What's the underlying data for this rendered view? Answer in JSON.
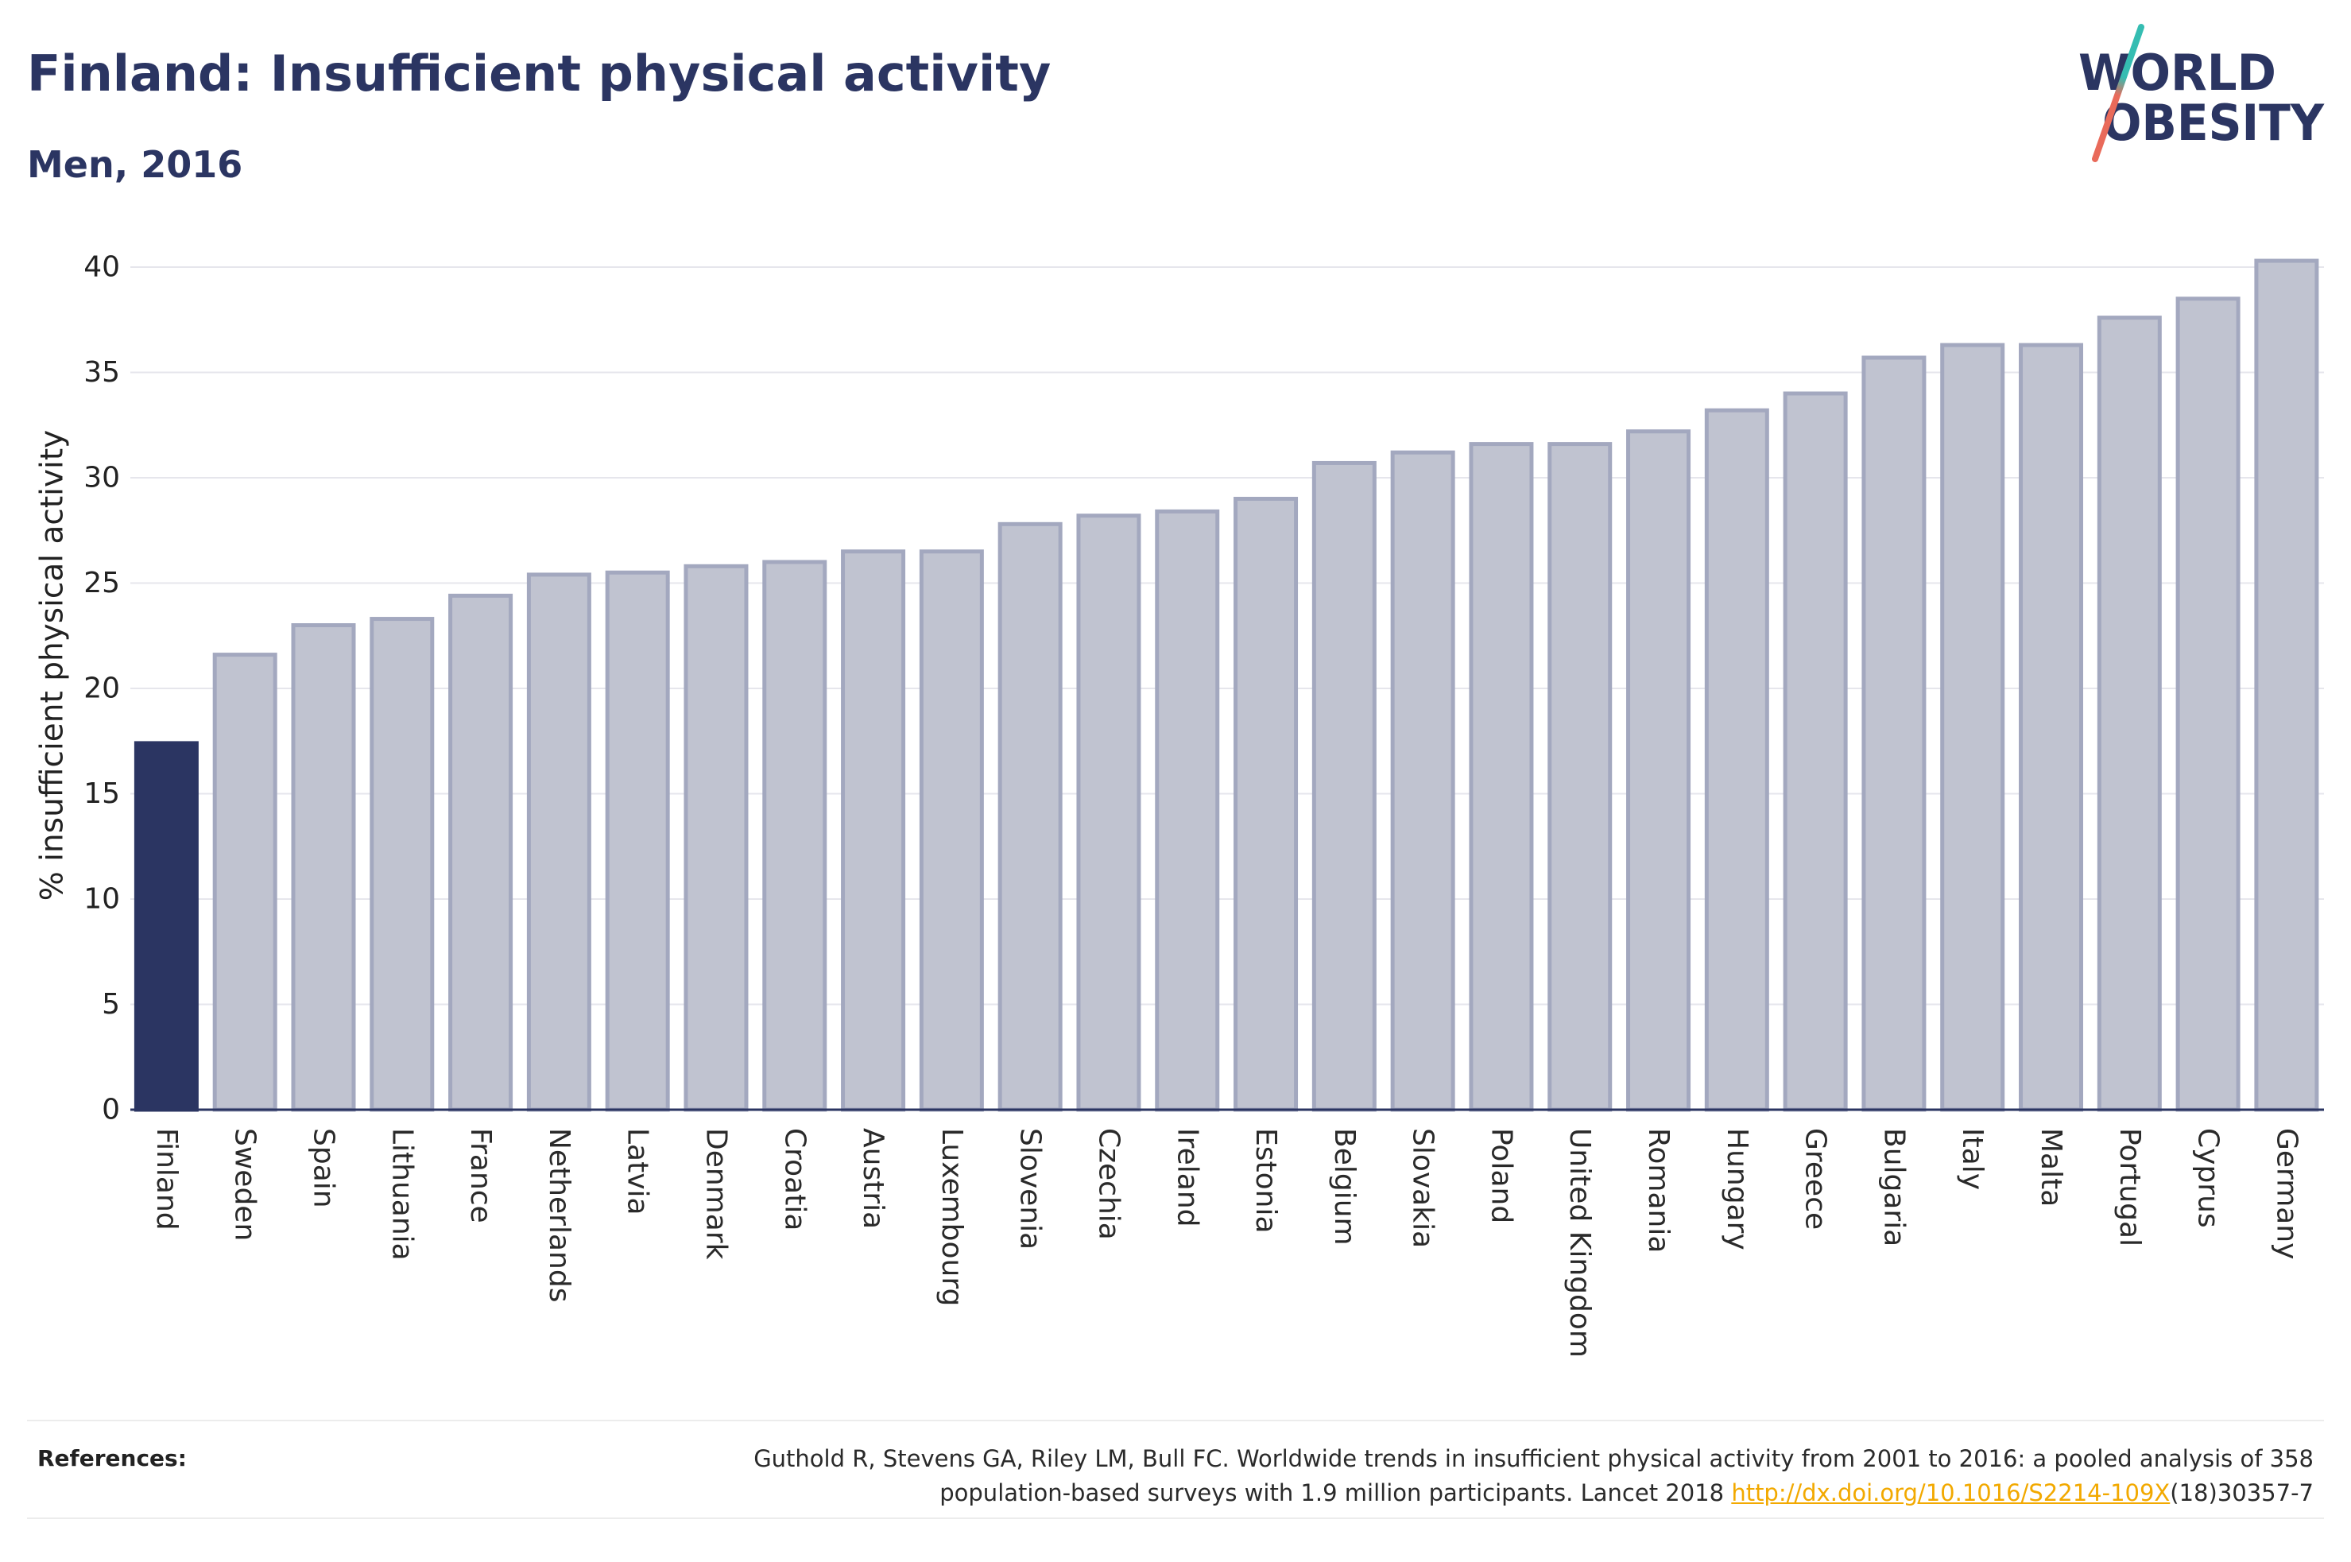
{
  "chart_data": {
    "type": "bar",
    "title": "Finland: Insufficient physical activity",
    "subtitle": "Men, 2016",
    "ylabel": "% insufficient physical activity",
    "categories": [
      "Finland",
      "Sweden",
      "Spain",
      "Lithuania",
      "France",
      "Netherlands",
      "Latvia",
      "Denmark",
      "Croatia",
      "Austria",
      "Luxembourg",
      "Slovenia",
      "Czechia",
      "Ireland",
      "Estonia",
      "Belgium",
      "Slovakia",
      "Poland",
      "United Kingdom",
      "Romania",
      "Hungary",
      "Greece",
      "Bulgaria",
      "Italy",
      "Malta",
      "Portugal",
      "Cyprus",
      "Germany"
    ],
    "values": [
      17.4,
      21.6,
      23.0,
      23.3,
      24.4,
      25.4,
      25.5,
      25.8,
      26.0,
      26.5,
      26.5,
      27.8,
      28.2,
      28.4,
      29.0,
      30.7,
      31.2,
      31.6,
      31.6,
      32.2,
      33.2,
      34.0,
      35.7,
      36.3,
      36.3,
      37.6,
      38.5,
      40.3
    ],
    "highlight": "Finland",
    "ylim": [
      0,
      41
    ],
    "yticks": [
      0,
      5,
      10,
      15,
      20,
      25,
      30,
      35,
      40
    ],
    "grid": true
  },
  "logo": {
    "line1": "WORLD",
    "line2": "OBESITY"
  },
  "references": {
    "label": "References:",
    "line1": "Guthold R, Stevens GA, Riley LM, Bull FC. Worldwide trends in insufficient physical activity from 2001 to 2016: a pooled analysis of 358",
    "line2_text": "population-based surveys with 1.9 million participants. Lancet 2018 ",
    "link_text": "http://dx.doi.org/10.1016/S2214-109X",
    "line2_end": "(18)30357-7"
  },
  "colors": {
    "title": "#2b3562",
    "highlight_bar": "#2b3562",
    "bar_fill": "#c0c3d0",
    "bar_stroke": "#a3a8bf",
    "axis_line": "#2b3562",
    "link": "#f2a900",
    "logo_slash_top": "#35bdb2",
    "logo_slash_bottom": "#e96a5a"
  }
}
